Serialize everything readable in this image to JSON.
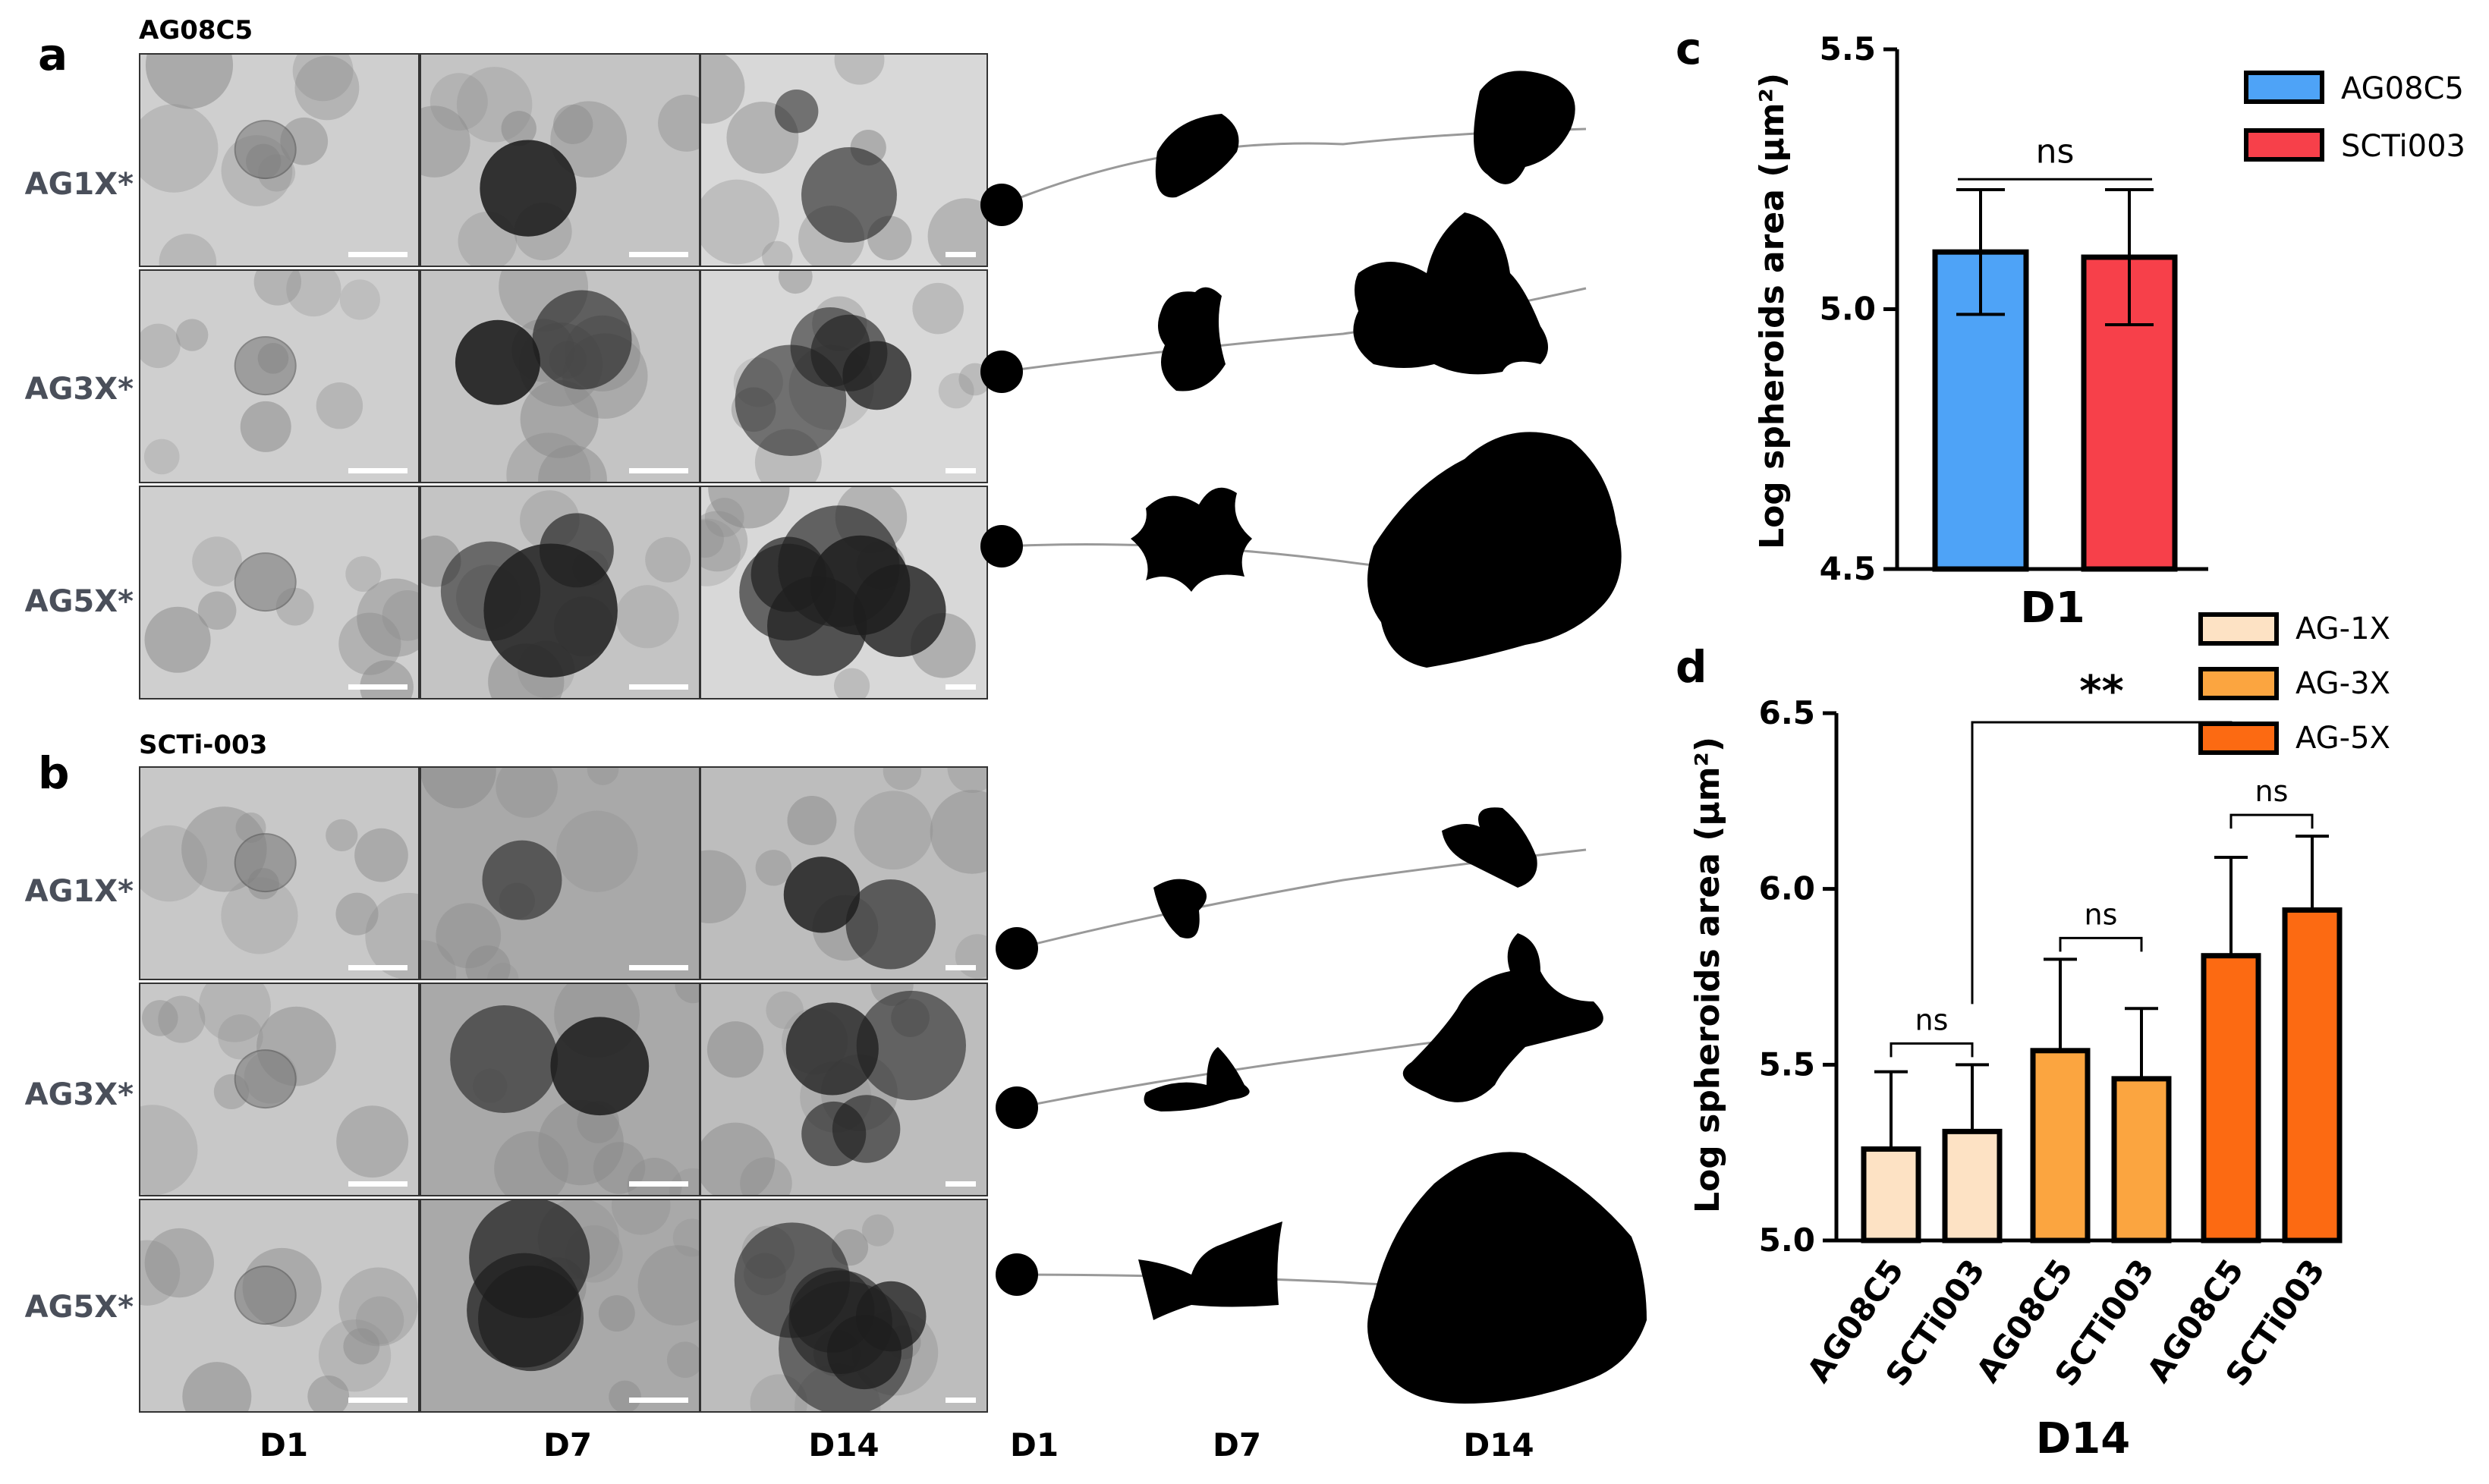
{
  "panel_a": {
    "letter": "a",
    "cell_line": "AG08C5",
    "rows": [
      "AG1X*",
      "AG3X*",
      "AG5X*"
    ]
  },
  "panel_b": {
    "letter": "b",
    "cell_line": "SCTi-003",
    "rows": [
      "AG1X*",
      "AG3X*",
      "AG5X*"
    ]
  },
  "micrograph_columns": [
    "D1",
    "D7",
    "D14"
  ],
  "schematic_columns": [
    "D1",
    "D7",
    "D14"
  ],
  "panel_c": {
    "letter": "c"
  },
  "panel_d": {
    "letter": "d"
  },
  "chart_data": [
    {
      "type": "bar",
      "panel": "c",
      "categories": [
        "D1"
      ],
      "series": [
        {
          "name": "AG08C5",
          "values": [
            5.11
          ],
          "error": [
            0.12
          ],
          "color": "#4ea3f7"
        },
        {
          "name": "SCTi003",
          "values": [
            5.1
          ],
          "error": [
            0.13
          ],
          "color": "#f7404a"
        }
      ],
      "xlabel": "D1",
      "ylabel": "Log spheroids area (μm²)",
      "ylim": [
        4.5,
        5.5
      ],
      "yticks": [
        "4.5",
        "5.0",
        "5.5"
      ],
      "annotations": [
        {
          "text": "ns",
          "between": [
            "AG08C5",
            "SCTi003"
          ]
        }
      ],
      "legend": "top-right"
    },
    {
      "type": "bar",
      "panel": "d",
      "categories": [
        "AG08C5",
        "SCTi003",
        "AG08C5",
        "SCTi003",
        "AG08C5",
        "SCTi003"
      ],
      "values": [
        5.26,
        5.31,
        5.54,
        5.46,
        5.81,
        5.94
      ],
      "error": [
        0.22,
        0.19,
        0.26,
        0.2,
        0.28,
        0.21
      ],
      "groups": [
        {
          "name": "AG-1X",
          "color": "#fde2c4",
          "indices": [
            0,
            1
          ]
        },
        {
          "name": "AG-3X",
          "color": "#fba540",
          "indices": [
            2,
            3
          ]
        },
        {
          "name": "AG-5X",
          "color": "#fc6a12",
          "indices": [
            4,
            5
          ]
        }
      ],
      "xlabel": "D14",
      "ylabel": "Log spheroids area (μm²)",
      "ylim": [
        5.0,
        6.5
      ],
      "yticks": [
        "5.0",
        "5.5",
        "6.0",
        "6.5"
      ],
      "annotations": [
        {
          "text": "ns",
          "between": [
            0,
            1
          ]
        },
        {
          "text": "ns",
          "between": [
            2,
            3
          ]
        },
        {
          "text": "ns",
          "between": [
            4,
            5
          ]
        },
        {
          "text": "**",
          "between": [
            1,
            4
          ]
        }
      ],
      "legend": "top-right"
    }
  ]
}
